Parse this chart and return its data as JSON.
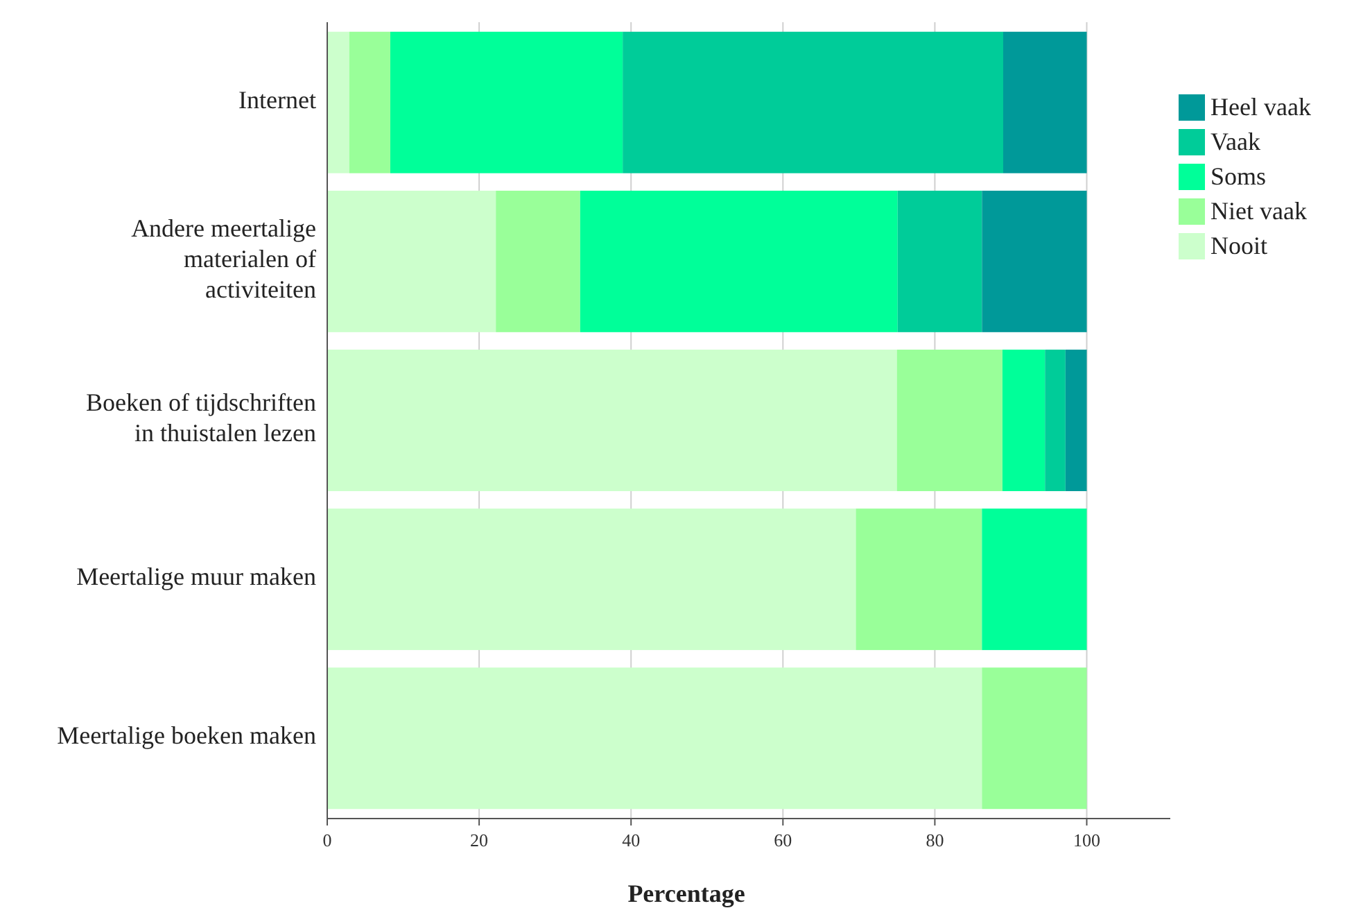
{
  "chart_data": {
    "type": "bar",
    "orientation": "horizontal",
    "stacked": true,
    "xlabel": "Percentage",
    "categories": [
      "Internet",
      "Andere meertalige materialen of activiteiten",
      "Boeken of tijdschriften in thuistalen lezen",
      "Meertalige muur maken",
      "Meertalige boeken maken"
    ],
    "series": [
      {
        "name": "Nooit",
        "color": "#ccffcc",
        "values": [
          2.9,
          22.2,
          75.0,
          69.6,
          86.2
        ]
      },
      {
        "name": "Niet vaak",
        "color": "#99ff99",
        "values": [
          5.4,
          11.1,
          13.9,
          16.6,
          13.8
        ]
      },
      {
        "name": "Soms",
        "color": "#00ff99",
        "values": [
          30.6,
          41.8,
          5.6,
          13.8,
          null
        ]
      },
      {
        "name": "Vaak",
        "color": "#00cc99",
        "values": [
          50.1,
          11.1,
          2.7,
          null,
          null
        ]
      },
      {
        "name": "Heel vaak",
        "color": "#009999",
        "values": [
          11.0,
          13.8,
          2.8,
          null,
          null
        ]
      }
    ],
    "xlim": [
      0,
      111
    ],
    "xticks": [
      0,
      20,
      40,
      60,
      80,
      100
    ],
    "grid": "x",
    "legend": "top right"
  }
}
